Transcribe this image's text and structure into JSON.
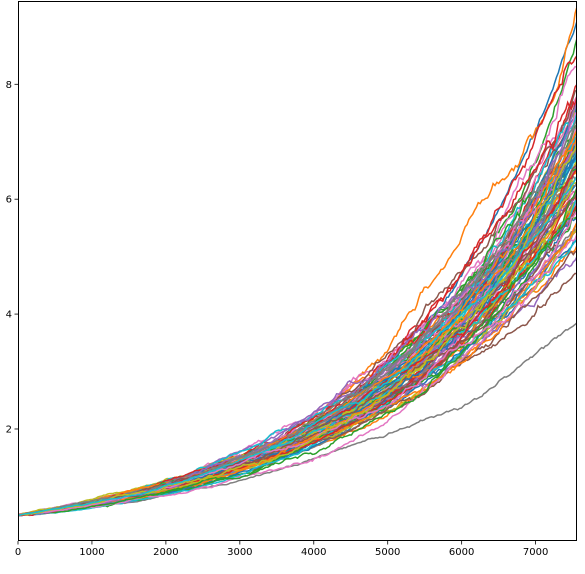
{
  "chart_data": {
    "type": "line",
    "title": "",
    "xlabel": "",
    "ylabel": "",
    "xlim": [
      0,
      7560
    ],
    "ylim": [
      0.05,
      9.45
    ],
    "grid": false,
    "legend": "none",
    "x_ticks": [
      {
        "value": 0,
        "label": "0"
      },
      {
        "value": 1000,
        "label": "1000"
      },
      {
        "value": 2000,
        "label": "2000"
      },
      {
        "value": 3000,
        "label": "3000"
      },
      {
        "value": 4000,
        "label": "4000"
      },
      {
        "value": 5000,
        "label": "5000"
      },
      {
        "value": 6000,
        "label": "6000"
      },
      {
        "value": 7000,
        "label": "7000"
      }
    ],
    "y_ticks": [
      {
        "value": 2,
        "label": "2"
      },
      {
        "value": 4,
        "label": "4"
      },
      {
        "value": 6,
        "label": "6"
      },
      {
        "value": 8,
        "label": "8"
      }
    ],
    "n_steps": 7560,
    "start_value": 0.5,
    "palette": [
      "#1f77b4",
      "#ff7f0e",
      "#2ca02c",
      "#d62728",
      "#9467bd",
      "#8c564b",
      "#e377c2",
      "#7f7f7f",
      "#bcbd22",
      "#17becf"
    ],
    "series_summary": {
      "count": 100,
      "final_values": [
        9.1,
        9.35,
        8.8,
        8.5,
        7.2,
        4.7,
        8.3,
        3.85,
        7.6,
        6.4,
        6.9,
        5.2,
        7.1,
        8.0,
        6.1,
        6.6,
        7.4,
        5.9,
        6.8,
        7.0,
        6.3,
        5.5,
        7.3,
        6.2,
        6.0,
        6.7,
        7.8,
        5.8,
        6.5,
        7.5,
        5.3,
        6.9,
        7.2,
        6.1,
        5.0,
        7.7,
        6.4,
        5.6,
        6.8,
        7.1,
        6.3,
        5.9,
        7.0,
        6.6,
        5.4,
        7.9,
        6.2,
        6.0,
        6.7,
        7.4,
        5.7,
        6.5,
        7.2,
        6.1,
        5.8,
        6.9,
        7.3,
        6.4,
        5.5,
        6.8,
        7.6,
        6.2,
        5.9,
        7.0,
        6.6,
        5.1,
        7.5,
        6.3,
        6.0,
        6.7,
        7.1,
        5.6,
        6.5,
        7.8,
        6.1,
        5.8,
        6.9,
        7.3,
        6.4,
        5.3,
        6.8,
        7.2,
        6.2,
        5.9,
        7.0,
        6.6,
        5.4,
        7.4,
        6.3,
        6.0,
        6.7,
        7.1,
        5.7,
        6.5,
        7.7,
        6.1,
        5.8,
        6.9,
        7.0,
        6.4
      ]
    }
  }
}
